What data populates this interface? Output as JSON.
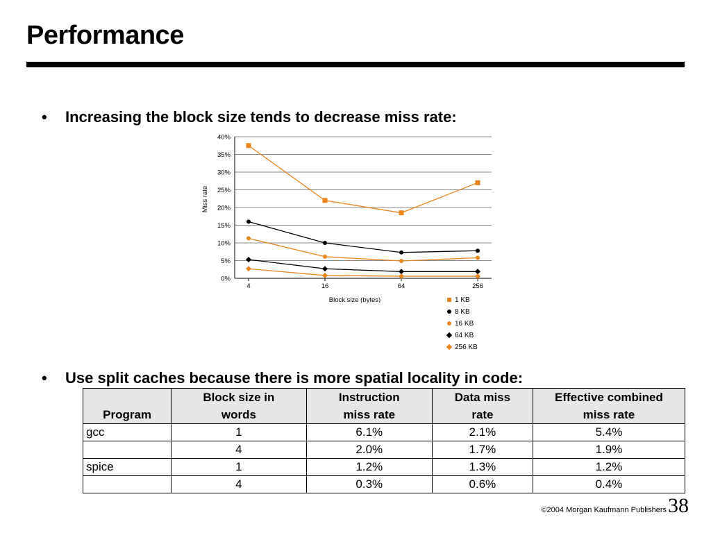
{
  "slide": {
    "title": "Performance",
    "bullet1": "Increasing the block size tends to decrease miss rate:",
    "bullet2": "Use split caches because there is more spatial locality in code:",
    "bullet_symbol": "•",
    "footer": "©2004 Morgan Kaufmann Publishers",
    "page_number": "38"
  },
  "chart_data": {
    "type": "line",
    "x": [
      "4",
      "16",
      "64",
      "256"
    ],
    "xlabel": "Block size (bytes)",
    "ylabel": "Miss rate",
    "ylim": [
      0,
      40
    ],
    "yticks": [
      "0%",
      "5%",
      "10%",
      "15%",
      "20%",
      "25%",
      "30%",
      "35%",
      "40%"
    ],
    "grid": true,
    "legend_position": "bottom-right",
    "series": [
      {
        "name": "1 KB",
        "values": [
          37.5,
          22.0,
          18.5,
          27.0
        ],
        "color": "#e8841a",
        "marker": "square"
      },
      {
        "name": "8 KB",
        "values": [
          16.0,
          10.0,
          7.3,
          7.8
        ],
        "color": "#000000",
        "marker": "circle"
      },
      {
        "name": "16 KB",
        "values": [
          11.3,
          6.1,
          4.9,
          5.8
        ],
        "color": "#e8841a",
        "marker": "circle"
      },
      {
        "name": "64 KB",
        "values": [
          5.3,
          2.7,
          1.9,
          1.9
        ],
        "color": "#000000",
        "marker": "diamond"
      },
      {
        "name": "256 KB",
        "values": [
          2.7,
          0.8,
          0.6,
          0.6
        ],
        "color": "#e8841a",
        "marker": "diamond"
      }
    ]
  },
  "table": {
    "headers": [
      "Program",
      "Block size in words",
      "Instruction miss rate",
      "Data miss rate",
      "Effective combined miss rate"
    ],
    "header_lines": [
      [
        "Program"
      ],
      [
        "Block size in",
        "words"
      ],
      [
        "Instruction",
        "miss rate"
      ],
      [
        "Data miss",
        "rate"
      ],
      [
        "Effective combined",
        "miss rate"
      ]
    ],
    "rows": [
      [
        "gcc",
        "1",
        "6.1%",
        "2.1%",
        "5.4%"
      ],
      [
        "",
        "4",
        "2.0%",
        "1.7%",
        "1.9%"
      ],
      [
        "spice",
        "1",
        "1.2%",
        "1.3%",
        "1.2%"
      ],
      [
        "",
        "4",
        "0.3%",
        "0.6%",
        "0.4%"
      ]
    ]
  }
}
